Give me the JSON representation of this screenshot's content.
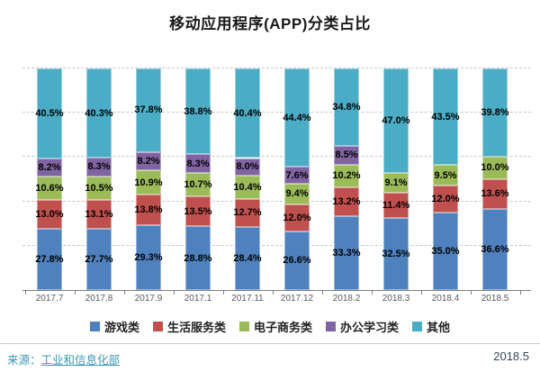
{
  "title": "移动应用程序(APP)分类占比",
  "chart_data": {
    "type": "bar",
    "subtype": "stacked-100-percent",
    "title": "移动应用程序(APP)分类占比",
    "categories": [
      "2017.7",
      "2017.8",
      "2017.9",
      "2017.1",
      "2017.11",
      "2017.12",
      "2018.2",
      "2018.3",
      "2018.4",
      "2018.5"
    ],
    "series": [
      {
        "name": "游戏类",
        "color": "#4E81BD",
        "values": [
          27.8,
          27.7,
          29.3,
          28.8,
          28.4,
          26.6,
          33.3,
          32.5,
          35.0,
          36.6
        ]
      },
      {
        "name": "生活服务类",
        "color": "#C0504D",
        "values": [
          13.0,
          13.1,
          13.8,
          13.5,
          12.7,
          12.0,
          13.2,
          11.4,
          12.0,
          13.6
        ]
      },
      {
        "name": "电子商务类",
        "color": "#9BBB59",
        "values": [
          10.6,
          10.5,
          10.9,
          10.7,
          10.4,
          9.4,
          10.2,
          9.1,
          9.5,
          10.0
        ]
      },
      {
        "name": "办公学习类",
        "color": "#8064A2",
        "values": [
          8.2,
          8.3,
          8.2,
          8.3,
          8.0,
          7.6,
          8.5,
          null,
          null,
          null
        ]
      },
      {
        "name": "其他",
        "color": "#4BACC6",
        "values": [
          40.5,
          40.3,
          37.8,
          38.8,
          40.4,
          44.4,
          34.8,
          47.0,
          43.5,
          39.8
        ]
      }
    ],
    "ylim": [
      0,
      100
    ],
    "grid": "horizontal dashed every 20%",
    "legend_position": "bottom",
    "data_labels": "percent one decimal, centered in each segment"
  },
  "footer": {
    "source_label": "来源：",
    "source_name": "工业和信息化部",
    "date": "2018.5"
  }
}
